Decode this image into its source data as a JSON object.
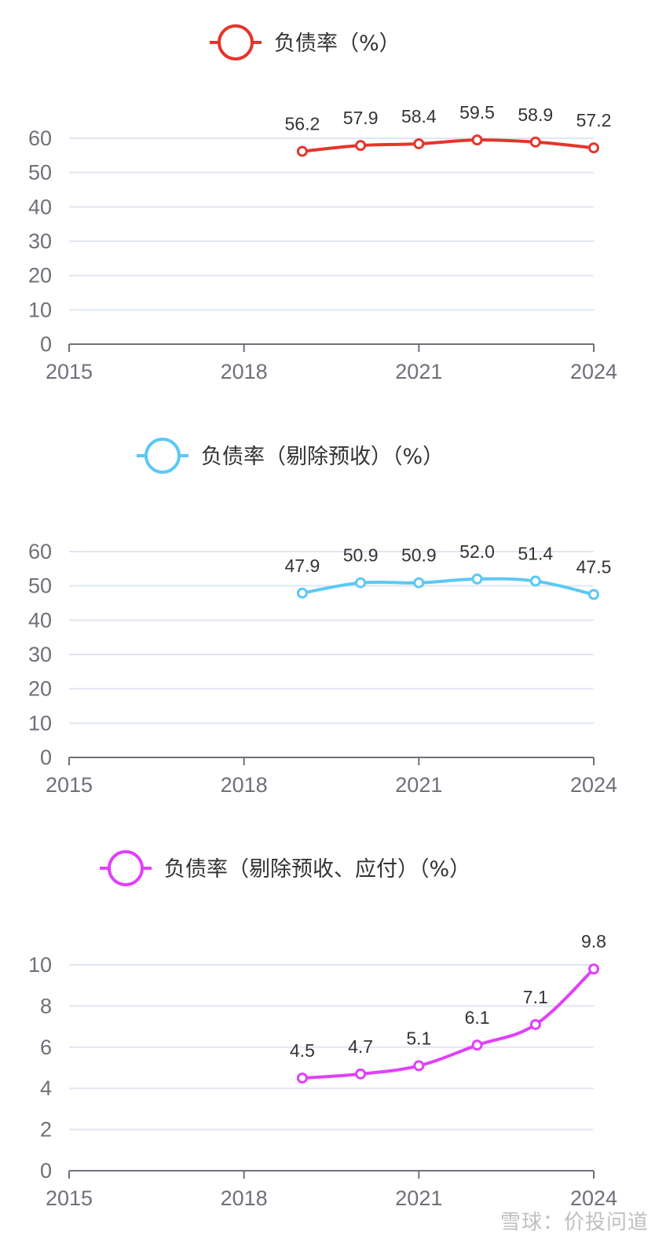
{
  "watermark": "雪球：价投问道",
  "chart_data": [
    {
      "type": "line",
      "title": "",
      "series": [
        {
          "name": "负债率（%）",
          "color": "#e5352b",
          "x": [
            2019,
            2020,
            2021,
            2022,
            2023,
            2024
          ],
          "values": [
            56.2,
            57.9,
            58.4,
            59.5,
            58.9,
            57.2
          ],
          "labels": [
            "56.2",
            "57.9",
            "58.4",
            "59.5",
            "58.9",
            "57.2"
          ]
        }
      ],
      "x_ticks": [
        "2015",
        "2018",
        "2021",
        "2024"
      ],
      "xlim": [
        2015,
        2024
      ],
      "y_ticks": [
        "0",
        "10",
        "20",
        "30",
        "40",
        "50",
        "60"
      ],
      "ylim": [
        0,
        60
      ],
      "grid": true,
      "legend": "top-center"
    },
    {
      "type": "line",
      "title": "",
      "series": [
        {
          "name": "负债率（剔除预收）（%）",
          "color": "#5bc8f5",
          "x": [
            2019,
            2020,
            2021,
            2022,
            2023,
            2024
          ],
          "values": [
            47.9,
            50.9,
            50.9,
            52.0,
            51.4,
            47.5
          ],
          "labels": [
            "47.9",
            "50.9",
            "50.9",
            "52.0",
            "51.4",
            "47.5"
          ]
        }
      ],
      "x_ticks": [
        "2015",
        "2018",
        "2021",
        "2024"
      ],
      "xlim": [
        2015,
        2024
      ],
      "y_ticks": [
        "0",
        "10",
        "20",
        "30",
        "40",
        "50",
        "60"
      ],
      "ylim": [
        0,
        60
      ],
      "grid": true,
      "legend": "top-center"
    },
    {
      "type": "line",
      "title": "",
      "series": [
        {
          "name": "负债率（剔除预收、应付）（%）",
          "color": "#e040fb",
          "x": [
            2019,
            2020,
            2021,
            2022,
            2023,
            2024
          ],
          "values": [
            4.5,
            4.7,
            5.1,
            6.1,
            7.1,
            9.8
          ],
          "labels": [
            "4.5",
            "4.7",
            "5.1",
            "6.1",
            "7.1",
            "9.8"
          ]
        }
      ],
      "x_ticks": [
        "2015",
        "2018",
        "2021",
        "2024"
      ],
      "xlim": [
        2015,
        2024
      ],
      "y_ticks": [
        "0",
        "2",
        "4",
        "6",
        "8",
        "10"
      ],
      "ylim": [
        0,
        10
      ],
      "grid": true,
      "legend": "top-center"
    }
  ]
}
